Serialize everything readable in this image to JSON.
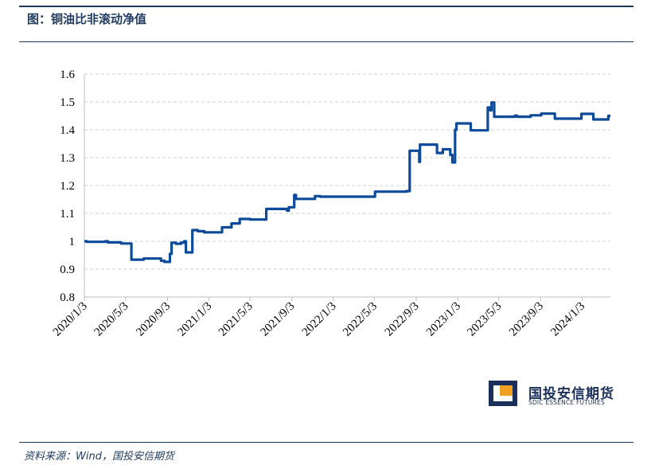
{
  "header": {
    "title": "图：铜油比非滚动净值"
  },
  "footer": {
    "source": "资料来源：Wind，国投安信期货"
  },
  "logo": {
    "name_cn": "国投安信期货",
    "name_en": "SDIC ESSENCE FUTURES"
  },
  "colors": {
    "series": "#0e4a9a",
    "rule": "#1f3a5f",
    "grid": "#d0d0d0"
  },
  "chart_data": {
    "type": "line",
    "title": "",
    "xlabel": "",
    "ylabel": "",
    "ylim": [
      0.8,
      1.6
    ],
    "yticks": [
      "0.8",
      "0.9",
      "1",
      "1.1",
      "1.2",
      "1.3",
      "1.4",
      "1.5",
      "1.6"
    ],
    "ytick_values": [
      0.8,
      0.9,
      1.0,
      1.1,
      1.2,
      1.3,
      1.4,
      1.5,
      1.6
    ],
    "xlim": [
      "2020-01-03",
      "2024-03-26"
    ],
    "xticks": [
      "2020/1/3",
      "2020/5/3",
      "2020/9/3",
      "2021/1/3",
      "2021/5/3",
      "2021/9/3",
      "2022/1/3",
      "2022/5/3",
      "2022/9/3",
      "2023/1/3",
      "2023/5/3",
      "2023/9/3",
      "2024/1/3"
    ],
    "xtick_dates": [
      "2020-01-03",
      "2020-05-03",
      "2020-09-03",
      "2021-01-03",
      "2021-05-03",
      "2021-09-03",
      "2022-01-03",
      "2022-05-03",
      "2022-09-03",
      "2023-01-03",
      "2023-05-03",
      "2023-09-03",
      "2024-01-03"
    ],
    "grid": "horizontal-dashed",
    "legend": "none",
    "series": [
      {
        "points": [
          [
            "2020-01-03",
            1.0
          ],
          [
            "2020-01-10",
            1.0
          ],
          [
            "2020-01-10",
            0.998
          ],
          [
            "2020-03-05",
            0.998
          ],
          [
            "2020-03-05",
            1.0
          ],
          [
            "2020-03-12",
            1.0
          ],
          [
            "2020-03-12",
            0.996
          ],
          [
            "2020-04-20",
            0.996
          ],
          [
            "2020-04-20",
            0.992
          ],
          [
            "2020-05-20",
            0.992
          ],
          [
            "2020-05-20",
            0.934
          ],
          [
            "2020-06-25",
            0.934
          ],
          [
            "2020-06-25",
            0.938
          ],
          [
            "2020-08-15",
            0.938
          ],
          [
            "2020-08-15",
            0.93
          ],
          [
            "2020-08-25",
            0.93
          ],
          [
            "2020-08-25",
            0.926
          ],
          [
            "2020-09-10",
            0.926
          ],
          [
            "2020-09-10",
            0.955
          ],
          [
            "2020-09-15",
            0.955
          ],
          [
            "2020-09-15",
            0.995
          ],
          [
            "2020-09-28",
            0.995
          ],
          [
            "2020-09-28",
            0.991
          ],
          [
            "2020-10-12",
            0.991
          ],
          [
            "2020-10-12",
            0.995
          ],
          [
            "2020-10-22",
            0.995
          ],
          [
            "2020-10-22",
            1.0
          ],
          [
            "2020-10-27",
            1.0
          ],
          [
            "2020-10-27",
            0.96
          ],
          [
            "2020-11-15",
            0.96
          ],
          [
            "2020-11-15",
            1.04
          ],
          [
            "2020-12-01",
            1.04
          ],
          [
            "2020-12-01",
            1.036
          ],
          [
            "2020-12-20",
            1.036
          ],
          [
            "2020-12-20",
            1.032
          ],
          [
            "2021-02-10",
            1.032
          ],
          [
            "2021-02-10",
            1.05
          ],
          [
            "2021-03-10",
            1.05
          ],
          [
            "2021-03-10",
            1.064
          ],
          [
            "2021-04-03",
            1.064
          ],
          [
            "2021-04-03",
            1.08
          ],
          [
            "2021-05-03",
            1.08
          ],
          [
            "2021-05-03",
            1.078
          ],
          [
            "2021-06-20",
            1.078
          ],
          [
            "2021-06-20",
            1.116
          ],
          [
            "2021-08-20",
            1.116
          ],
          [
            "2021-08-20",
            1.11
          ],
          [
            "2021-08-25",
            1.11
          ],
          [
            "2021-08-25",
            1.122
          ],
          [
            "2021-09-10",
            1.122
          ],
          [
            "2021-09-10",
            1.166
          ],
          [
            "2021-09-15",
            1.166
          ],
          [
            "2021-09-15",
            1.152
          ],
          [
            "2021-11-10",
            1.152
          ],
          [
            "2021-11-10",
            1.162
          ],
          [
            "2021-11-25",
            1.162
          ],
          [
            "2021-11-25",
            1.16
          ],
          [
            "2022-05-05",
            1.16
          ],
          [
            "2022-05-05",
            1.178
          ],
          [
            "2022-08-05",
            1.178
          ],
          [
            "2022-08-05",
            1.18
          ],
          [
            "2022-08-15",
            1.18
          ],
          [
            "2022-08-15",
            1.325
          ],
          [
            "2022-09-12",
            1.325
          ],
          [
            "2022-09-12",
            1.285
          ],
          [
            "2022-09-14",
            1.285
          ],
          [
            "2022-09-14",
            1.347
          ],
          [
            "2022-11-03",
            1.347
          ],
          [
            "2022-11-03",
            1.317
          ],
          [
            "2022-11-20",
            1.317
          ],
          [
            "2022-11-20",
            1.33
          ],
          [
            "2022-12-12",
            1.33
          ],
          [
            "2022-12-12",
            1.31
          ],
          [
            "2022-12-18",
            1.31
          ],
          [
            "2022-12-18",
            1.283
          ],
          [
            "2022-12-26",
            1.283
          ],
          [
            "2022-12-26",
            1.4
          ],
          [
            "2022-12-30",
            1.4
          ],
          [
            "2022-12-30",
            1.423
          ],
          [
            "2023-02-10",
            1.423
          ],
          [
            "2023-02-10",
            1.398
          ],
          [
            "2023-04-01",
            1.398
          ],
          [
            "2023-04-01",
            1.48
          ],
          [
            "2023-04-08",
            1.48
          ],
          [
            "2023-04-08",
            1.47
          ],
          [
            "2023-04-12",
            1.47
          ],
          [
            "2023-04-12",
            1.498
          ],
          [
            "2023-04-20",
            1.498
          ],
          [
            "2023-04-20",
            1.447
          ],
          [
            "2023-06-20",
            1.447
          ],
          [
            "2023-06-20",
            1.451
          ],
          [
            "2023-06-26",
            1.451
          ],
          [
            "2023-06-26",
            1.447
          ],
          [
            "2023-08-05",
            1.447
          ],
          [
            "2023-08-05",
            1.452
          ],
          [
            "2023-09-05",
            1.452
          ],
          [
            "2023-09-05",
            1.458
          ],
          [
            "2023-10-15",
            1.458
          ],
          [
            "2023-10-15",
            1.44
          ],
          [
            "2024-01-01",
            1.44
          ],
          [
            "2024-01-01",
            1.457
          ],
          [
            "2024-02-05",
            1.457
          ],
          [
            "2024-02-05",
            1.437
          ],
          [
            "2024-03-20",
            1.437
          ],
          [
            "2024-03-20",
            1.45
          ],
          [
            "2024-03-26",
            1.45
          ]
        ]
      }
    ]
  }
}
